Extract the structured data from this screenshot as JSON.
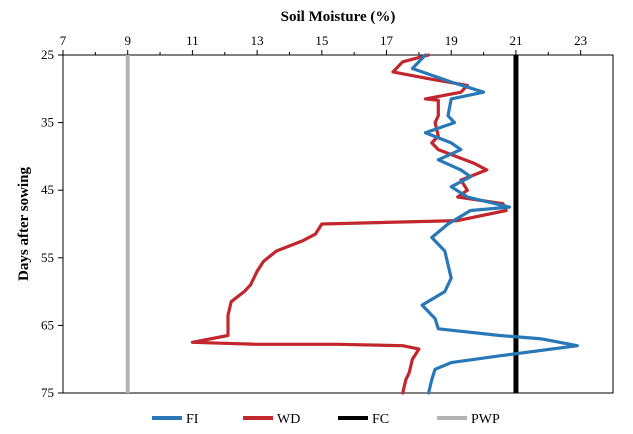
{
  "chart_data": {
    "type": "line",
    "xlabel": "Soil Moisture (%)",
    "ylabel": "Days after sowing",
    "xlim": [
      7,
      24
    ],
    "ylim": [
      25,
      75
    ],
    "y_reversed": true,
    "x_axis_position": "top",
    "x_ticks": [
      7,
      9,
      11,
      13,
      15,
      17,
      19,
      21,
      23
    ],
    "x_tick_labels": [
      "7",
      "9",
      "11",
      "13",
      "15",
      "17",
      "19",
      "21",
      "23"
    ],
    "y_ticks": [
      25,
      35,
      45,
      55,
      65,
      75
    ],
    "y_tick_labels": [
      "25",
      "35",
      "45",
      "55",
      "65",
      "75"
    ],
    "grid": false,
    "legend_position": "bottom",
    "series": [
      {
        "name": "FI",
        "color": "#2878b8",
        "style": "line",
        "points": [
          [
            18.2,
            25
          ],
          [
            17.8,
            27
          ],
          [
            19.0,
            29
          ],
          [
            20.0,
            30.5
          ],
          [
            19.0,
            31.5
          ],
          [
            18.9,
            34
          ],
          [
            19.1,
            35
          ],
          [
            18.2,
            36.5
          ],
          [
            19.0,
            38
          ],
          [
            19.3,
            39
          ],
          [
            18.6,
            40.5
          ],
          [
            19.3,
            42
          ],
          [
            19.6,
            43
          ],
          [
            19.0,
            44.5
          ],
          [
            19.5,
            46
          ],
          [
            20.8,
            47.5
          ],
          [
            19.6,
            48
          ],
          [
            18.9,
            50
          ],
          [
            18.4,
            52
          ],
          [
            18.8,
            54
          ],
          [
            18.9,
            56
          ],
          [
            19.0,
            58
          ],
          [
            18.8,
            60
          ],
          [
            18.1,
            62
          ],
          [
            18.5,
            64
          ],
          [
            18.6,
            65.5
          ],
          [
            20.5,
            66.5
          ],
          [
            21.8,
            67
          ],
          [
            22.9,
            68
          ],
          [
            20.5,
            69.5
          ],
          [
            19.0,
            70.5
          ],
          [
            18.5,
            71.5
          ],
          [
            18.4,
            73
          ],
          [
            18.3,
            75
          ]
        ]
      },
      {
        "name": "WD",
        "color": "#c1272d",
        "style": "line",
        "points": [
          [
            18.3,
            25
          ],
          [
            17.5,
            26
          ],
          [
            17.2,
            27.5
          ],
          [
            18.3,
            28.5
          ],
          [
            19.5,
            29.5
          ],
          [
            19.3,
            30.5
          ],
          [
            18.2,
            31.5
          ],
          [
            18.6,
            31.7
          ],
          [
            18.6,
            34
          ],
          [
            18.5,
            35
          ],
          [
            18.6,
            37
          ],
          [
            18.4,
            38
          ],
          [
            18.6,
            39
          ],
          [
            19.7,
            41
          ],
          [
            20.1,
            42
          ],
          [
            19.3,
            43.5
          ],
          [
            19.5,
            45
          ],
          [
            19.2,
            46
          ],
          [
            20.6,
            47
          ],
          [
            20.7,
            48
          ],
          [
            19.2,
            49.5
          ],
          [
            15.0,
            50
          ],
          [
            14.8,
            51.5
          ],
          [
            14.4,
            52.5
          ],
          [
            13.6,
            54
          ],
          [
            13.2,
            55.5
          ],
          [
            13.0,
            57
          ],
          [
            12.8,
            59
          ],
          [
            12.6,
            60
          ],
          [
            12.2,
            61.5
          ],
          [
            12.1,
            63.5
          ],
          [
            12.1,
            66.5
          ],
          [
            11.0,
            67.5
          ],
          [
            13.0,
            67.8
          ],
          [
            15.5,
            67.8
          ],
          [
            17.5,
            68
          ],
          [
            18.0,
            68.5
          ],
          [
            17.8,
            70
          ],
          [
            17.7,
            72
          ],
          [
            17.6,
            73
          ],
          [
            17.5,
            75
          ]
        ]
      },
      {
        "name": "FC",
        "color": "#000000",
        "style": "vertical",
        "points": [
          [
            21,
            25
          ],
          [
            21,
            75
          ]
        ]
      },
      {
        "name": "PWP",
        "color": "#b3b3b3",
        "style": "vertical",
        "points": [
          [
            9,
            25
          ],
          [
            9,
            75
          ]
        ]
      }
    ]
  }
}
